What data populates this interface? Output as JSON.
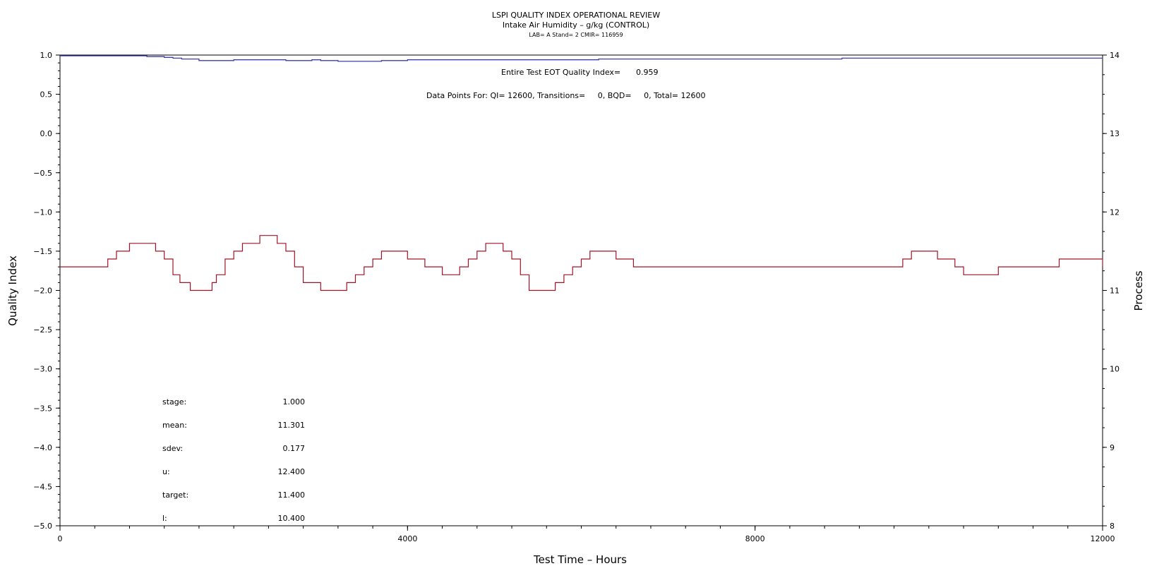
{
  "chart_data": {
    "type": "line",
    "title": "LSPI QUALITY INDEX OPERATIONAL REVIEW",
    "subtitle": "Intake Air Humidity – g/kg (CONTROL)",
    "subtitle2": "LAB= A Stand= 2 CMIR= 116959",
    "xlabel": "Test Time – Hours",
    "ylabel": "Quality Index",
    "y2label": "Process",
    "xlim": [
      0,
      12000
    ],
    "ylim": [
      -5.0,
      1.0
    ],
    "y2lim": [
      8,
      14
    ],
    "x_ticks": [
      "0",
      "4000",
      "8000",
      "12000"
    ],
    "y_ticks": [
      "1.0",
      "0.5",
      "0.0",
      "−0.5",
      "−1.0",
      "−1.5",
      "−2.0",
      "−2.5",
      "−3.0",
      "−3.5",
      "−4.0",
      "−4.5",
      "−5.0"
    ],
    "y2_ticks": [
      "14",
      "13",
      "12",
      "11",
      "10",
      "9",
      "8"
    ],
    "annotations": {
      "eot_label": "Entire Test EOT Quality Index=",
      "eot_value": "0.959",
      "datapoints": "Data Points For: QI= 12600, Transitions=     0, BQD=     0, Total= 12600"
    },
    "stats": [
      {
        "label": "stage:",
        "value": "1.000"
      },
      {
        "label": "mean:",
        "value": "11.301"
      },
      {
        "label": "sdev:",
        "value": "0.177"
      },
      {
        "label": "u:",
        "value": "12.400"
      },
      {
        "label": "target:",
        "value": "11.400"
      },
      {
        "label": "l:",
        "value": "10.400"
      }
    ],
    "series": [
      {
        "axis": "left",
        "color": "#3f3fa8",
        "x": [
          0,
          500,
          1000,
          1200,
          1300,
          1400,
          1600,
          1900,
          2000,
          2600,
          2900,
          3000,
          3200,
          3400,
          3700,
          4000,
          4600,
          5000,
          5600,
          6200,
          7000,
          7600,
          8200,
          9000,
          9600,
          10200,
          10400,
          11000,
          12000
        ],
        "y": [
          0.99,
          0.99,
          0.98,
          0.97,
          0.96,
          0.95,
          0.93,
          0.93,
          0.94,
          0.93,
          0.94,
          0.93,
          0.92,
          0.92,
          0.93,
          0.94,
          0.94,
          0.94,
          0.94,
          0.95,
          0.95,
          0.95,
          0.95,
          0.96,
          0.96,
          0.96,
          0.96,
          0.96,
          0.96
        ]
      },
      {
        "axis": "right",
        "color": "#a01428",
        "x": [
          0,
          450,
          550,
          650,
          800,
          950,
          1100,
          1200,
          1300,
          1380,
          1500,
          1650,
          1750,
          1800,
          1900,
          2000,
          2100,
          2300,
          2400,
          2500,
          2600,
          2700,
          2800,
          3000,
          3200,
          3300,
          3400,
          3500,
          3600,
          3700,
          3800,
          4000,
          4200,
          4400,
          4500,
          4600,
          4700,
          4800,
          4900,
          5000,
          5100,
          5200,
          5300,
          5400,
          5600,
          5700,
          5800,
          5900,
          6000,
          6100,
          6200,
          6400,
          6600,
          8000,
          9500,
          9700,
          9800,
          10100,
          10300,
          10400,
          10800,
          11500,
          12000
        ],
        "y": [
          11.3,
          11.3,
          11.4,
          11.5,
          11.6,
          11.6,
          11.5,
          11.4,
          11.2,
          11.1,
          11.0,
          11.0,
          11.1,
          11.2,
          11.4,
          11.5,
          11.6,
          11.7,
          11.7,
          11.6,
          11.5,
          11.3,
          11.1,
          11.0,
          11.0,
          11.1,
          11.2,
          11.3,
          11.4,
          11.5,
          11.5,
          11.4,
          11.3,
          11.2,
          11.2,
          11.3,
          11.4,
          11.5,
          11.6,
          11.6,
          11.5,
          11.4,
          11.2,
          11.0,
          11.0,
          11.1,
          11.2,
          11.3,
          11.4,
          11.5,
          11.5,
          11.4,
          11.3,
          11.3,
          11.3,
          11.4,
          11.5,
          11.4,
          11.3,
          11.2,
          11.3,
          11.4,
          11.3
        ]
      }
    ]
  }
}
